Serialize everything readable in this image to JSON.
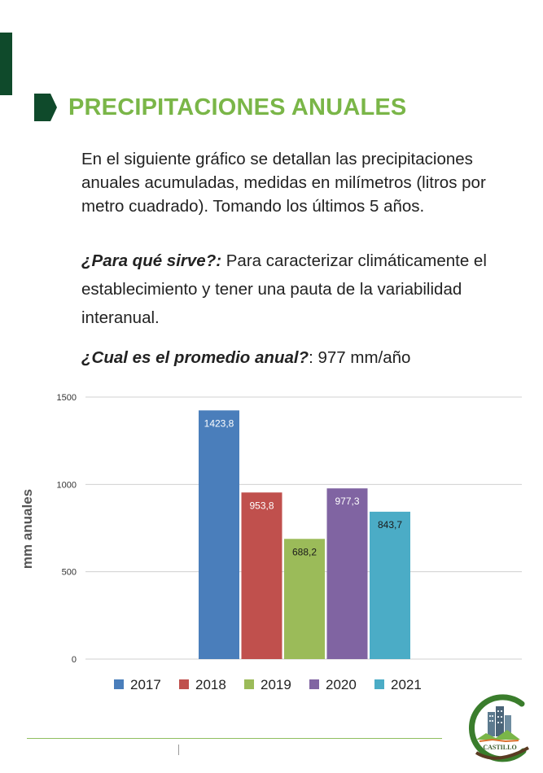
{
  "heading": "PRECIPITACIONES ANUALES",
  "intro": "En el siguiente gráfico se detallan las precipitaciones anuales acumuladas, medidas en milímetros (litros por metro cuadrado). Tomando los últimos 5 años.",
  "question1": {
    "label": "¿Para qué sirve?:",
    "answer": " Para caracterizar climáticamente el establecimiento y tener una pauta de la variabilidad interanual."
  },
  "question2": {
    "label": "¿Cual es el promedio anual?",
    "answer": ": 977 mm/año"
  },
  "logo": {
    "text": "CASTILLO"
  },
  "colors": {
    "heading": "#7ab648",
    "marker": "#0f4a2b"
  },
  "chart_data": {
    "type": "bar",
    "title": "",
    "xlabel": "",
    "ylabel": "mm anuales",
    "ylim": [
      0,
      1500
    ],
    "yticks": [
      0,
      500,
      1000,
      1500
    ],
    "grid": true,
    "legend_position": "bottom",
    "series": [
      {
        "name": "2017",
        "value": 1423.8,
        "label": "1423,8",
        "color": "#4a7ebb",
        "label_color": "#ffffff"
      },
      {
        "name": "2018",
        "value": 953.8,
        "label": "953,8",
        "color": "#c0504d",
        "label_color": "#ffffff"
      },
      {
        "name": "2019",
        "value": 688.2,
        "label": "688,2",
        "color": "#9bbb59",
        "label_color": "#1a1a1a"
      },
      {
        "name": "2020",
        "value": 977.3,
        "label": "977,3",
        "color": "#8064a2",
        "label_color": "#ffffff"
      },
      {
        "name": "2021",
        "value": 843.7,
        "label": "843,7",
        "color": "#4bacc6",
        "label_color": "#1a1a1a"
      }
    ]
  }
}
